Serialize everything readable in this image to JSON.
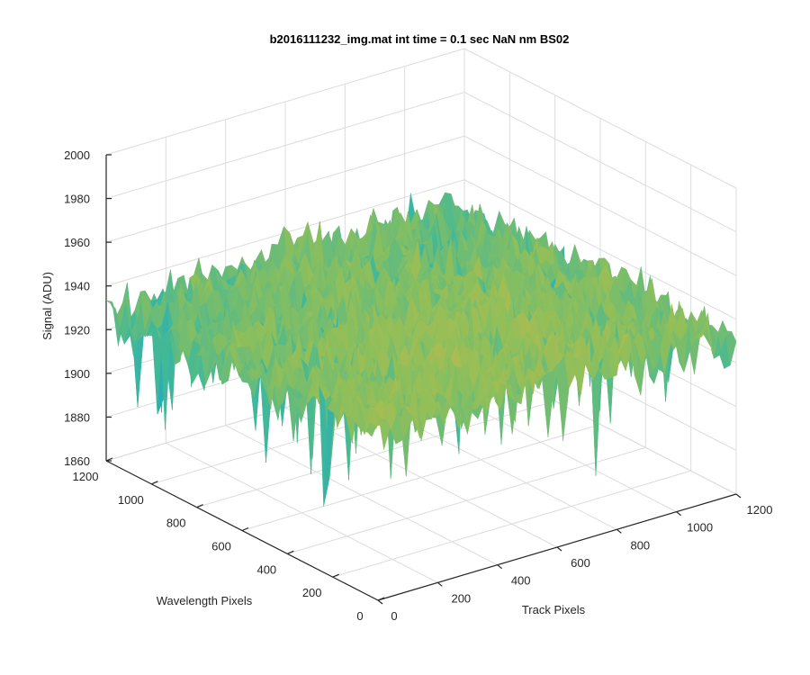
{
  "figure": {
    "title": "b2016111232_img.mat int time = 0.1 sec  NaN nm BS02"
  },
  "chart_data": {
    "type": "surface",
    "title": "b2016111232_img.mat int time = 0.1 sec  NaN nm BS02",
    "xlabel": "Track Pixels",
    "ylabel": "Wavelength Pixels",
    "zlabel": "Signal (ADU)",
    "xlim": [
      0,
      1200
    ],
    "ylim": [
      0,
      1200
    ],
    "zlim": [
      1860,
      2000
    ],
    "xticks": [
      0,
      200,
      400,
      600,
      800,
      1000,
      1200
    ],
    "yticks": [
      0,
      200,
      400,
      600,
      800,
      1000,
      1200
    ],
    "zticks": [
      1860,
      1880,
      1900,
      1920,
      1940,
      1960,
      1980,
      2000
    ],
    "grid": true,
    "colormap": [
      "#0072bd",
      "#21a6c9",
      "#3fb89a",
      "#8fbf5a",
      "#c9b94a"
    ],
    "surface_mean": 1930,
    "surface_range": [
      1865,
      1975
    ]
  }
}
